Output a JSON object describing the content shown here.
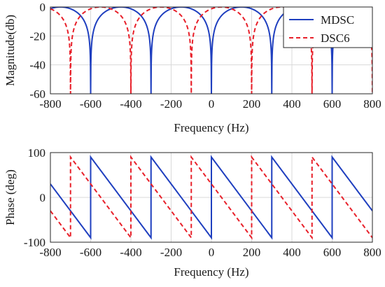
{
  "chart_data": [
    {
      "type": "line",
      "xlabel": "Frequency (Hz)",
      "ylabel": "Magnitude(db)",
      "xlim": [
        -800,
        800
      ],
      "ylim": [
        -60,
        0
      ],
      "xticks": [
        -800,
        -600,
        -400,
        -200,
        0,
        200,
        400,
        600,
        800
      ],
      "yticks": [
        0,
        -20,
        -40,
        -60
      ],
      "xticklabels": [
        "-800",
        "-600",
        "-400",
        "-200",
        "0",
        "200",
        "400",
        "600",
        "800"
      ],
      "yticklabels": [
        "0",
        "-20",
        "-40",
        "-60"
      ],
      "grid": true,
      "legend": {
        "position": "top-right",
        "entries": [
          "MDSC",
          "DSC6"
        ]
      },
      "series": [
        {
          "name": "MDSC",
          "color": "#1f3fbf",
          "style": "solid",
          "notches": [
            -600,
            -300,
            0,
            300,
            600
          ],
          "peaks": [
            -750,
            -450,
            -150,
            150,
            450,
            750
          ]
        },
        {
          "name": "DSC6",
          "color": "#e8202a",
          "style": "dashed",
          "notches": [
            -700,
            -400,
            -100,
            200,
            500
          ],
          "peaks": [
            -550,
            -250,
            50,
            350,
            650
          ]
        }
      ]
    },
    {
      "type": "line",
      "xlabel": "Frequency (Hz)",
      "ylabel": "Phase (deg)",
      "xlim": [
        -800,
        800
      ],
      "ylim": [
        -100,
        100
      ],
      "xticks": [
        -800,
        -600,
        -400,
        -200,
        0,
        200,
        400,
        600,
        800
      ],
      "yticks": [
        100,
        0,
        -100
      ],
      "xticklabels": [
        "-800",
        "-600",
        "-400",
        "-200",
        "0",
        "200",
        "400",
        "600",
        "800"
      ],
      "yticklabels": [
        "100",
        "0",
        "-100"
      ],
      "grid": true,
      "series": [
        {
          "name": "MDSC",
          "color": "#1f3fbf",
          "style": "solid",
          "jumps": [
            -600,
            -300,
            0,
            300,
            600
          ],
          "period": 300,
          "amplitude": 90
        },
        {
          "name": "DSC6",
          "color": "#e8202a",
          "style": "dashed",
          "jumps": [
            -700,
            -400,
            -100,
            200,
            500
          ],
          "period": 300,
          "amplitude": 90
        }
      ]
    }
  ]
}
